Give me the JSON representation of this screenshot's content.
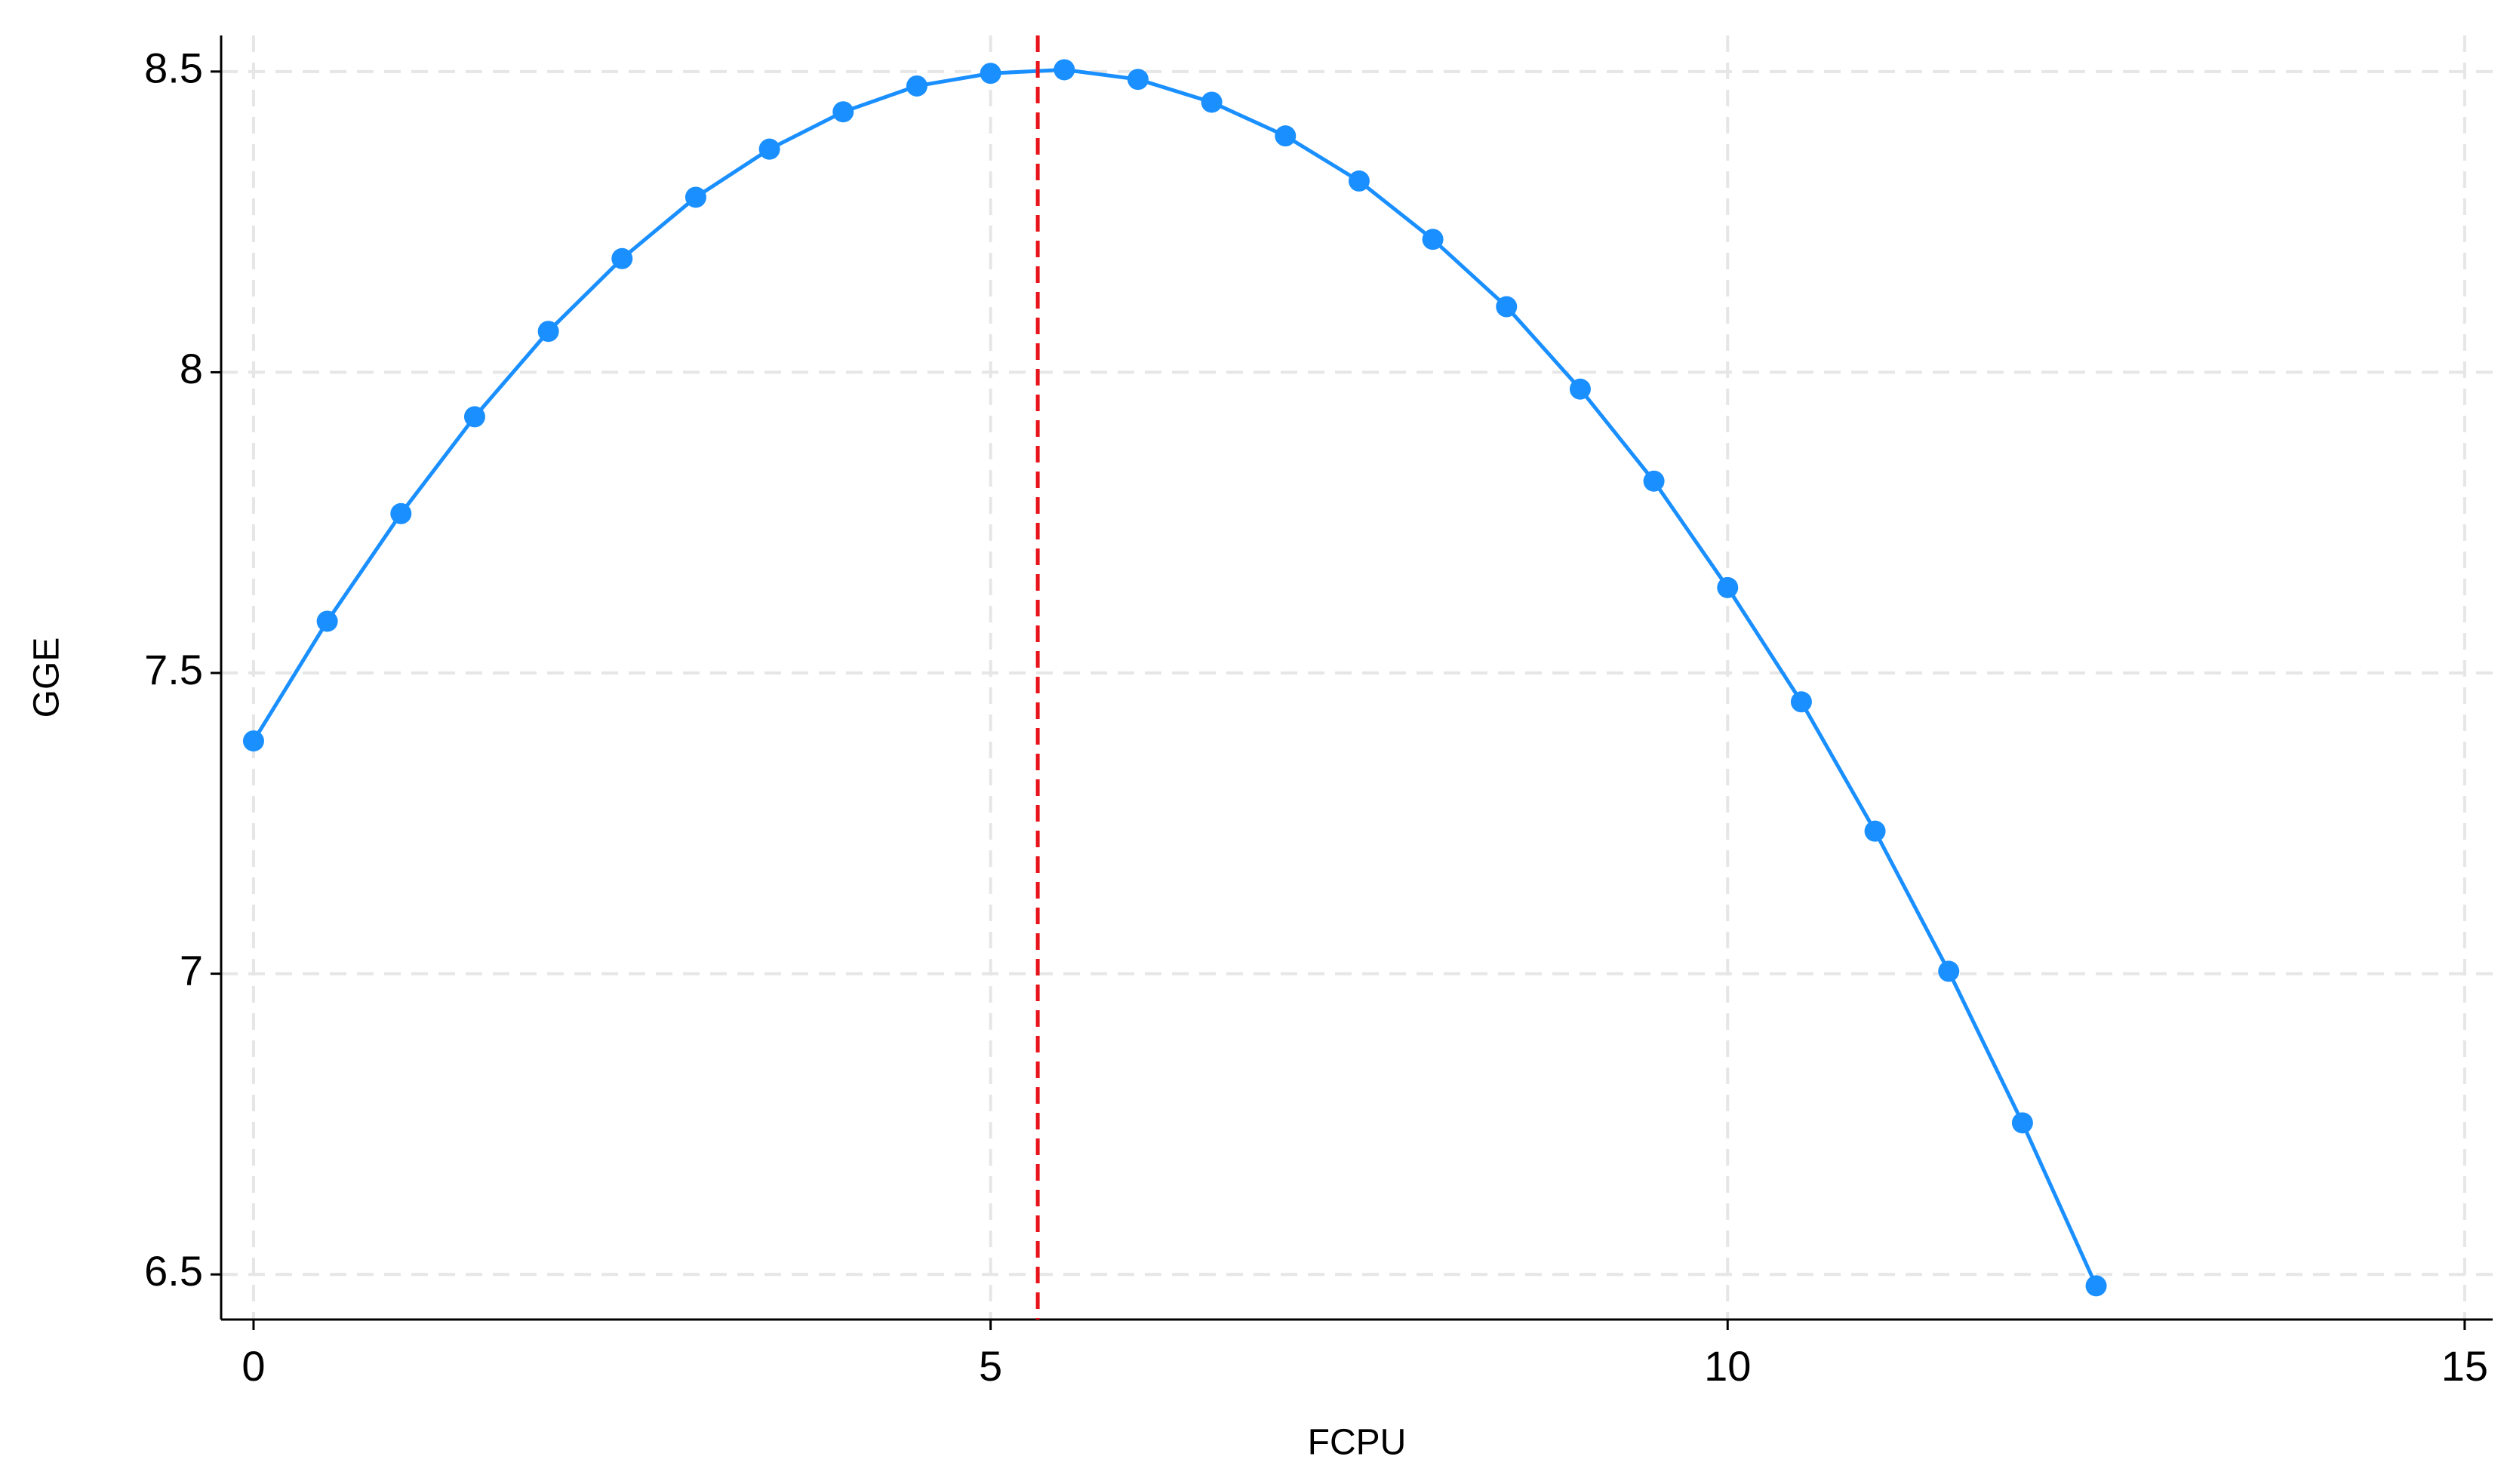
{
  "chart_data": {
    "type": "line",
    "x_label": "FCPU",
    "y_label": "GGE",
    "x": [
      0,
      0.5,
      1,
      1.5,
      2,
      2.5,
      3,
      3.5,
      4,
      4.5,
      5,
      5.5,
      6,
      6.5,
      7,
      7.5,
      8,
      8.5,
      9,
      9.5,
      10,
      10.5,
      11,
      11.5,
      12,
      12.5
    ],
    "values": [
      7.387,
      7.586,
      7.765,
      7.926,
      8.068,
      8.189,
      8.291,
      8.371,
      8.433,
      8.476,
      8.497,
      8.503,
      8.487,
      8.449,
      8.393,
      8.318,
      8.221,
      8.109,
      7.972,
      7.819,
      7.642,
      7.452,
      7.237,
      7.004,
      6.752,
      6.481
    ],
    "color": "#1a8fff",
    "reference_line": {
      "x": 5.32,
      "color": "#e8141c"
    },
    "xlim": [
      -0.22,
      15.19
    ],
    "ylim": [
      6.425,
      8.56
    ],
    "xticks": [
      0,
      5,
      10,
      15
    ],
    "yticks": [
      6.5,
      7,
      7.5,
      8,
      8.5
    ],
    "grid": true
  }
}
